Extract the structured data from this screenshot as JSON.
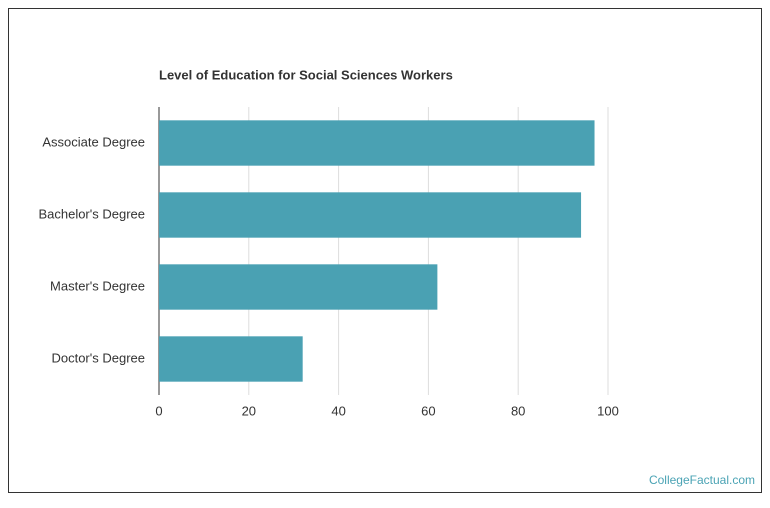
{
  "chart_data": {
    "type": "barh",
    "title": "Level of Education for Social Sciences Workers",
    "categories": [
      "Associate Degree",
      "Bachelor's Degree",
      "Master's Degree",
      "Doctor's Degree"
    ],
    "values": [
      97,
      94,
      62,
      32
    ],
    "color": "#4aa1b3",
    "xlim": [
      0,
      100
    ],
    "xticks": [
      0,
      20,
      40,
      60,
      80,
      100
    ],
    "grid": true
  },
  "footer": "CollegeFactual.com"
}
